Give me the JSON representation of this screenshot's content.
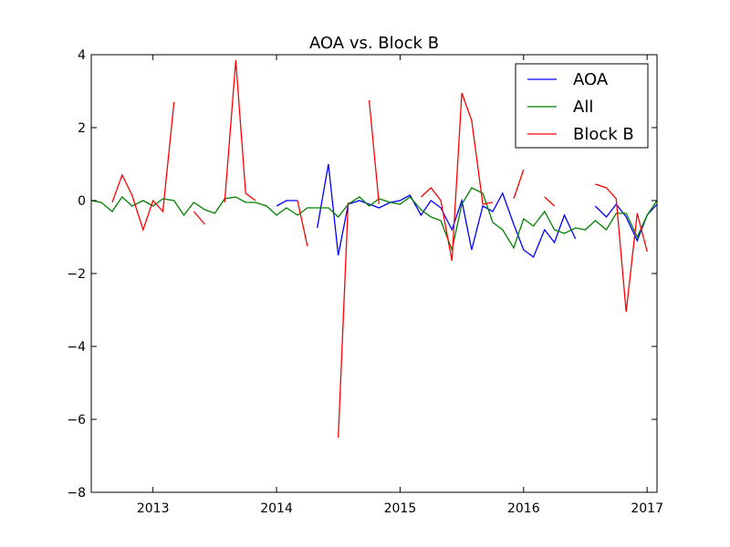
{
  "chart_data": {
    "type": "line",
    "title": "AOA vs. Block B",
    "xlabel": "",
    "ylabel": "",
    "xlim": [
      2012.5,
      2017.08
    ],
    "ylim": [
      -8,
      4
    ],
    "xticks": [
      2013,
      2014,
      2015,
      2016,
      2017
    ],
    "xtick_labels": [
      "2013",
      "2014",
      "2015",
      "2016",
      "2017"
    ],
    "yticks": [
      -8,
      -6,
      -4,
      -2,
      0,
      2,
      4
    ],
    "ytick_labels": [
      "−8",
      "−6",
      "−4",
      "−2",
      "0",
      "2",
      "4"
    ],
    "grid": false,
    "legend": {
      "placement": "top-right"
    },
    "series": [
      {
        "name": "AOA",
        "color": "#0000ff",
        "points": [
          [
            2014.0,
            -0.15
          ],
          [
            2014.08,
            0.0
          ],
          [
            2014.17,
            0.0
          ],
          [
            null,
            null
          ],
          [
            2014.33,
            -0.75
          ],
          [
            2014.42,
            1.0
          ],
          [
            2014.5,
            -1.5
          ],
          [
            2014.58,
            -0.1
          ],
          [
            2014.67,
            0.0
          ],
          [
            2014.75,
            -0.1
          ],
          [
            2014.83,
            -0.2
          ],
          [
            2014.92,
            -0.05
          ],
          [
            2015.0,
            0.0
          ],
          [
            2015.08,
            0.15
          ],
          [
            2015.17,
            -0.4
          ],
          [
            2015.25,
            0.0
          ],
          [
            2015.33,
            -0.2
          ],
          [
            2015.42,
            -0.8
          ],
          [
            2015.5,
            0.0
          ],
          [
            2015.58,
            -1.35
          ],
          [
            2015.67,
            -0.15
          ],
          [
            2015.75,
            -0.3
          ],
          [
            2015.83,
            0.2
          ],
          [
            2015.92,
            -0.65
          ],
          [
            2016.0,
            -1.35
          ],
          [
            2016.08,
            -1.55
          ],
          [
            2016.17,
            -0.8
          ],
          [
            2016.25,
            -1.15
          ],
          [
            2016.33,
            -0.4
          ],
          [
            2016.42,
            -1.05
          ],
          [
            null,
            null
          ],
          [
            2016.58,
            -0.15
          ],
          [
            2016.67,
            -0.45
          ],
          [
            2016.75,
            -0.1
          ],
          [
            2016.83,
            -0.45
          ],
          [
            2016.92,
            -1.1
          ],
          [
            2017.0,
            -0.4
          ],
          [
            2017.08,
            -0.1
          ]
        ]
      },
      {
        "name": "All",
        "color": "#008000",
        "points": [
          [
            2012.5,
            0.0
          ],
          [
            2012.58,
            -0.05
          ],
          [
            2012.67,
            -0.3
          ],
          [
            2012.75,
            0.1
          ],
          [
            2012.83,
            -0.15
          ],
          [
            2012.92,
            0.0
          ],
          [
            2013.0,
            -0.15
          ],
          [
            2013.08,
            0.05
          ],
          [
            2013.17,
            0.0
          ],
          [
            2013.25,
            -0.4
          ],
          [
            2013.33,
            -0.05
          ],
          [
            2013.42,
            -0.25
          ],
          [
            2013.5,
            -0.35
          ],
          [
            2013.58,
            0.05
          ],
          [
            2013.67,
            0.1
          ],
          [
            2013.75,
            -0.05
          ],
          [
            2013.83,
            -0.05
          ],
          [
            2013.92,
            -0.15
          ],
          [
            2014.0,
            -0.4
          ],
          [
            2014.08,
            -0.2
          ],
          [
            2014.17,
            -0.4
          ],
          [
            2014.25,
            -0.2
          ],
          [
            2014.33,
            -0.2
          ],
          [
            2014.42,
            -0.2
          ],
          [
            2014.5,
            -0.45
          ],
          [
            2014.58,
            -0.1
          ],
          [
            2014.67,
            0.1
          ],
          [
            2014.75,
            -0.15
          ],
          [
            2014.83,
            0.05
          ],
          [
            2014.92,
            -0.05
          ],
          [
            2015.0,
            -0.1
          ],
          [
            2015.08,
            0.1
          ],
          [
            2015.17,
            -0.25
          ],
          [
            2015.25,
            -0.45
          ],
          [
            2015.33,
            -0.55
          ],
          [
            2015.42,
            -1.35
          ],
          [
            2015.5,
            -0.1
          ],
          [
            2015.58,
            0.35
          ],
          [
            2015.67,
            0.2
          ],
          [
            2015.75,
            -0.6
          ],
          [
            2015.83,
            -0.8
          ],
          [
            2015.92,
            -1.3
          ],
          [
            2016.0,
            -0.5
          ],
          [
            2016.08,
            -0.7
          ],
          [
            2016.17,
            -0.3
          ],
          [
            2016.25,
            -0.8
          ],
          [
            2016.33,
            -0.9
          ],
          [
            2016.42,
            -0.75
          ],
          [
            2016.5,
            -0.8
          ],
          [
            2016.58,
            -0.55
          ],
          [
            2016.67,
            -0.8
          ],
          [
            2016.75,
            -0.35
          ],
          [
            2016.83,
            -0.35
          ],
          [
            2016.92,
            -1.0
          ],
          [
            2017.0,
            -0.4
          ],
          [
            2017.08,
            0.0
          ]
        ]
      },
      {
        "name": "Block B",
        "color": "#ff0000",
        "points": [
          [
            2012.67,
            -0.05
          ],
          [
            2012.75,
            0.7
          ],
          [
            2012.83,
            0.15
          ],
          [
            2012.92,
            -0.8
          ],
          [
            2013.0,
            0.0
          ],
          [
            2013.08,
            -0.3
          ],
          [
            2013.17,
            2.7
          ],
          [
            null,
            null
          ],
          [
            2013.33,
            -0.3
          ],
          [
            2013.42,
            -0.65
          ],
          [
            null,
            null
          ],
          [
            2013.58,
            -0.05
          ],
          [
            2013.67,
            3.85
          ],
          [
            2013.75,
            0.2
          ],
          [
            2013.83,
            0.0
          ],
          [
            null,
            null
          ],
          [
            2014.17,
            0.0
          ],
          [
            2014.25,
            -1.25
          ],
          [
            null,
            null
          ],
          [
            2014.5,
            -6.5
          ],
          [
            2014.58,
            -0.05
          ],
          [
            null,
            null
          ],
          [
            2014.75,
            2.75
          ],
          [
            2014.83,
            -0.1
          ],
          [
            null,
            null
          ],
          [
            2015.17,
            0.1
          ],
          [
            2015.25,
            0.35
          ],
          [
            2015.33,
            0.0
          ],
          [
            2015.42,
            -1.65
          ],
          [
            2015.5,
            2.95
          ],
          [
            2015.58,
            2.2
          ],
          [
            2015.67,
            -0.1
          ],
          [
            2015.75,
            -0.05
          ],
          [
            null,
            null
          ],
          [
            2015.92,
            0.05
          ],
          [
            2016.0,
            0.85
          ],
          [
            null,
            null
          ],
          [
            2016.17,
            0.1
          ],
          [
            2016.25,
            -0.15
          ],
          [
            null,
            null
          ],
          [
            2016.58,
            0.45
          ],
          [
            2016.67,
            0.35
          ],
          [
            2016.75,
            0.05
          ],
          [
            2016.83,
            -3.05
          ],
          [
            2016.92,
            -0.35
          ],
          [
            2017.0,
            -1.4
          ]
        ]
      }
    ]
  }
}
